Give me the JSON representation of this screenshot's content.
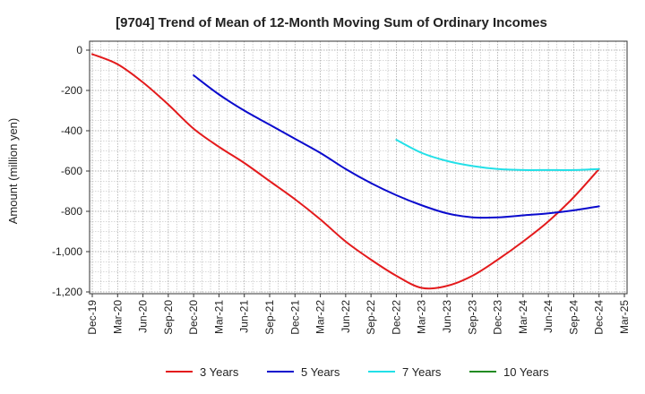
{
  "chart_data": {
    "type": "line",
    "title": "[9704]  Trend of Mean of 12-Month Moving Sum of Ordinary Incomes",
    "xlabel": "",
    "ylabel": "Amount (million yen)",
    "ylim": [
      -1200,
      0
    ],
    "yticks": [
      0,
      -200,
      -400,
      -600,
      -800,
      -1000,
      -1200
    ],
    "ytick_labels": [
      "0",
      "-200",
      "-400",
      "-600",
      "-800",
      "-1,000",
      "-1,200"
    ],
    "categories": [
      "Dec-19",
      "Mar-20",
      "Jun-20",
      "Sep-20",
      "Dec-20",
      "Mar-21",
      "Jun-21",
      "Sep-21",
      "Dec-21",
      "Mar-22",
      "Jun-22",
      "Sep-22",
      "Dec-22",
      "Mar-23",
      "Jun-23",
      "Sep-23",
      "Dec-23",
      "Mar-24",
      "Jun-24",
      "Sep-24",
      "Dec-24",
      "Mar-25"
    ],
    "grid": true,
    "legend_position": "bottom",
    "series": [
      {
        "name": "3 Years",
        "color": "#e31a1c",
        "values": [
          -20,
          -70,
          -160,
          -270,
          -390,
          -480,
          -560,
          -650,
          -740,
          -840,
          -950,
          -1040,
          -1120,
          -1180,
          -1170,
          -1120,
          -1040,
          -950,
          -850,
          -730,
          -590,
          null
        ]
      },
      {
        "name": "5 Years",
        "color": "#0a0acd",
        "values": [
          null,
          null,
          null,
          null,
          -125,
          -220,
          -300,
          -370,
          -440,
          -510,
          -590,
          -660,
          -720,
          -770,
          -810,
          -830,
          -830,
          -820,
          -810,
          -795,
          -775,
          null
        ]
      },
      {
        "name": "7 Years",
        "color": "#22e0e8",
        "values": [
          null,
          null,
          null,
          null,
          null,
          null,
          null,
          null,
          null,
          null,
          null,
          null,
          -445,
          -510,
          -550,
          -575,
          -590,
          -595,
          -595,
          -595,
          -590,
          null
        ]
      },
      {
        "name": "10 Years",
        "color": "#228b22",
        "values": [
          null,
          null,
          null,
          null,
          null,
          null,
          null,
          null,
          null,
          null,
          null,
          null,
          null,
          null,
          null,
          null,
          null,
          null,
          null,
          null,
          null,
          null
        ]
      }
    ]
  }
}
